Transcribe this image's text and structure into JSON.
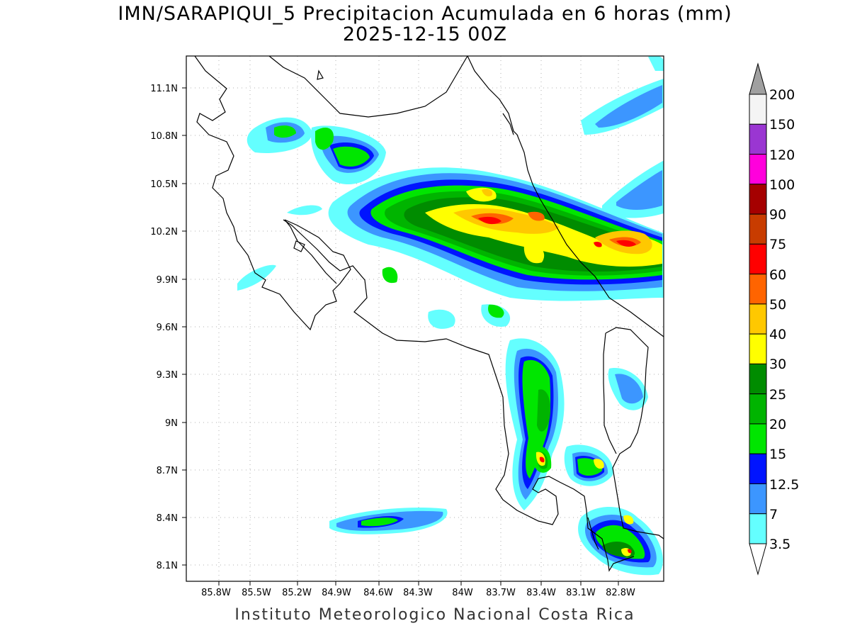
{
  "title": {
    "line1": "IMN/SARAPIQUI_5 Precipitacion Acumulada en 6 horas (mm)",
    "line2": "2025-12-15 00Z"
  },
  "credit": "Instituto Meteorologico Nacional Costa Rica",
  "map": {
    "lon_labels": [
      "85.8W",
      "85.5W",
      "85.2W",
      "84.9W",
      "84.6W",
      "84.3W",
      "84W",
      "83.7W",
      "83.4W",
      "83.1W",
      "82.8W"
    ],
    "lat_labels": [
      "11.1N",
      "10.8N",
      "10.5N",
      "10.2N",
      "9.9N",
      "9.6N",
      "9.3N",
      "9N",
      "8.7N",
      "8.4N",
      "8.1N"
    ]
  },
  "colorbar": {
    "labels": [
      "200",
      "150",
      "120",
      "100",
      "90",
      "75",
      "60",
      "50",
      "40",
      "30",
      "25",
      "20",
      "15",
      "12.5",
      "7",
      "3.5"
    ],
    "colors": [
      "#f4f4f4",
      "#9a36d2",
      "#ff00dc",
      "#a50000",
      "#c83c00",
      "#ff0000",
      "#ff6400",
      "#ffc800",
      "#ffff00",
      "#008c00",
      "#00b400",
      "#00e600",
      "#0014ff",
      "#3c96ff",
      "#64ffff"
    ],
    "over_color": "#a0a0a0",
    "under_color": "#ffffff"
  }
}
